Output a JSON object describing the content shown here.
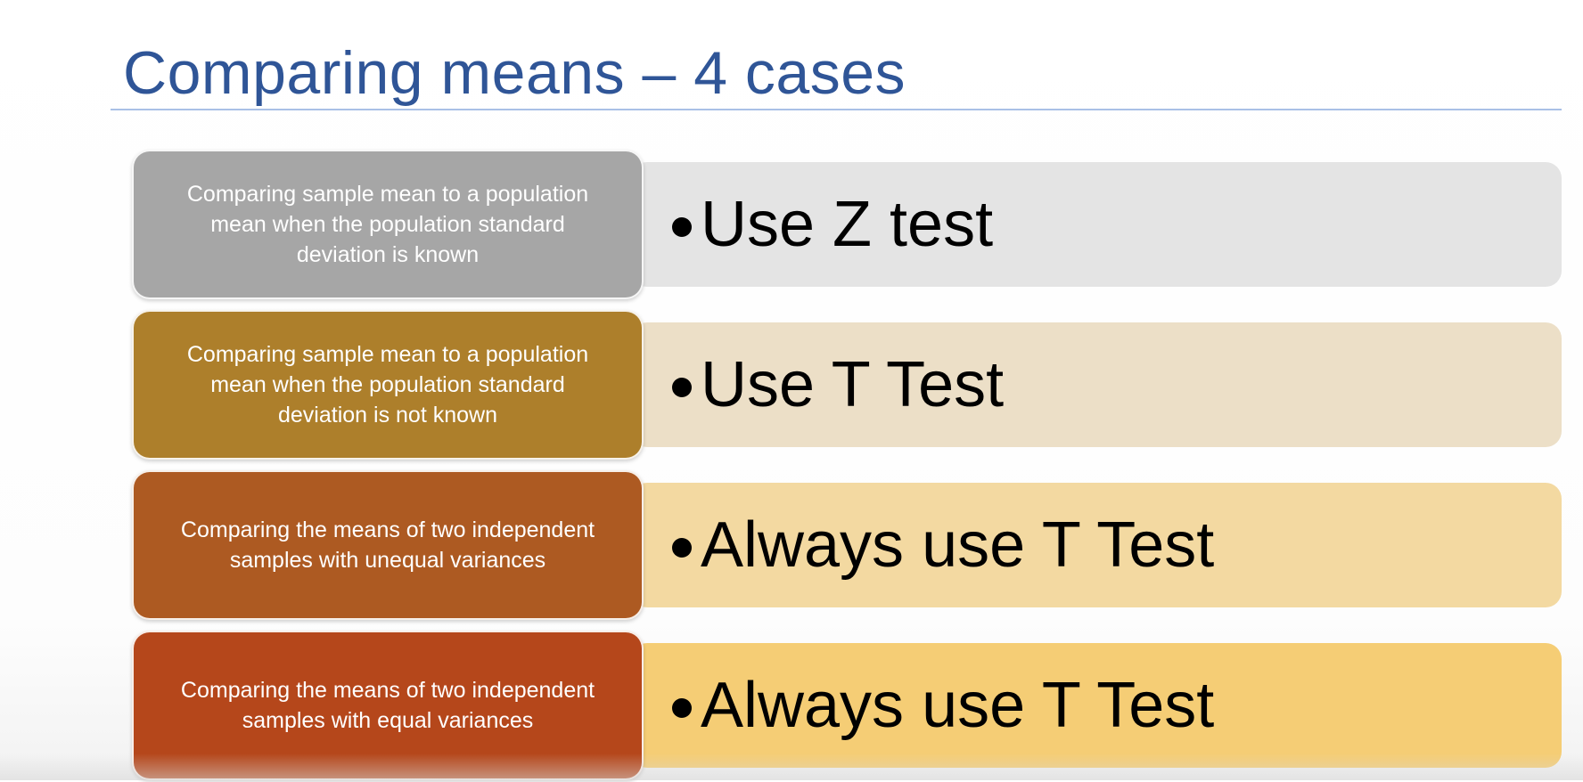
{
  "slide": {
    "title": "Comparing means – 4 cases",
    "title_color": "#2f5597",
    "rows": [
      {
        "case": "Comparing sample mean to a population\nmean when the population standard\ndeviation is known",
        "answer": "Use Z test",
        "box_color": "#a6a6a6",
        "bar_color": "#e4e4e4"
      },
      {
        "case": "Comparing sample mean to a population\nmean when the population standard\ndeviation is not known",
        "answer": "Use T Test",
        "box_color": "#ad7f2b",
        "bar_color": "#ecdfc7"
      },
      {
        "case": "Comparing the means of two independent\nsamples with unequal variances",
        "answer": "Always use T Test",
        "box_color": "#ad5a22",
        "bar_color": "#f3d9a1"
      },
      {
        "case": "Comparing the means of two independent\nsamples with equal variances",
        "answer": "Always use T Test",
        "box_color": "#b5471b",
        "bar_color": "#f5cd75"
      }
    ]
  }
}
